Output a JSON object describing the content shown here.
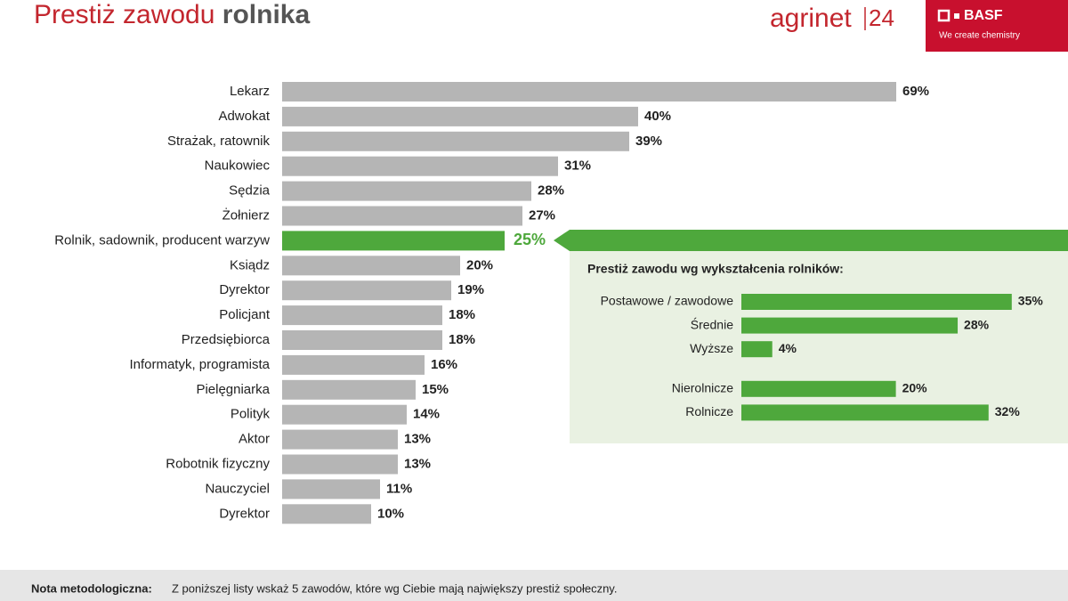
{
  "header": {
    "title": [
      "Prestiż zawodu",
      "rolnika"
    ],
    "logos": [
      "agrinet",
      "24",
      "BASF",
      "We create chemistry"
    ]
  },
  "chart_data": [
    {
      "type": "bar",
      "orientation": "horizontal",
      "categories": [
        "Lekarz",
        "Adwokat",
        "Strażak, ratownik",
        "Naukowiec",
        "Sędzia",
        "Żołnierz",
        "Rolnik, sadownik, producent warzyw",
        "Ksiądz",
        "Dyrektor",
        "Policjant",
        "Przedsiębiorca",
        "Informatyk, programista",
        "Pielęgniarka",
        "Polityk",
        "Aktor",
        "Robotnik fizyczny",
        "Nauczyciel",
        "Dyrektor"
      ],
      "values": [
        69,
        40,
        39,
        31,
        28,
        27,
        25,
        20,
        19,
        18,
        18,
        16,
        15,
        14,
        13,
        13,
        11,
        10
      ],
      "value_labels": [
        "69%",
        "40%",
        "39%",
        "31%",
        "28%",
        "27%",
        "25%",
        "20%",
        "19%",
        "18%",
        "18%",
        "16%",
        "15%",
        "14%",
        "13%",
        "13%",
        "11%",
        "10%"
      ],
      "colors": [
        "#b5b5b5",
        "#b5b5b5",
        "#b5b5b5",
        "#b5b5b5",
        "#b5b5b5",
        "#b5b5b5",
        "#4ea83c",
        "#b5b5b5",
        "#b5b5b5",
        "#b5b5b5",
        "#b5b5b5",
        "#b5b5b5",
        "#b5b5b5",
        "#b5b5b5",
        "#b5b5b5",
        "#b5b5b5",
        "#b5b5b5",
        "#b5b5b5"
      ]
    },
    {
      "type": "bar",
      "orientation": "horizontal",
      "title": "Prestiż zawodu wg wykształcenia rolników:",
      "categories": [
        "Postawowe / zawodowe",
        "Średnie",
        "Wyższe",
        "Nierolnicze",
        "Rolnicze"
      ],
      "values": [
        35,
        28,
        4,
        20,
        32
      ],
      "value_labels": [
        "35%",
        "28%",
        "4%",
        "20%",
        "32%"
      ],
      "color": "#4ea83c"
    }
  ],
  "footer": {
    "label": "Nota metodologiczna:",
    "text": "Z poniższej listy wskaż 5 zawodów, które wg Ciebie mają największy prestiż społeczny."
  }
}
